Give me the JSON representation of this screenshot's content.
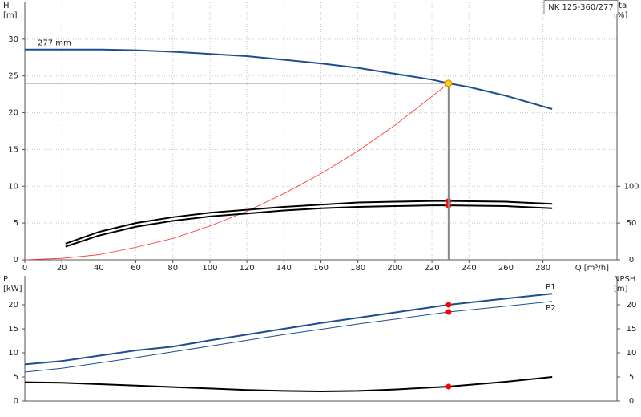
{
  "chart_data": [
    {
      "type": "line",
      "title": "NK 125-360/277",
      "ylabel": [
        "H",
        "[m]"
      ],
      "y2label": [
        "eta",
        "[%]"
      ],
      "xlabel": "Q [m³/h]",
      "xlim": [
        0,
        320
      ],
      "xticks": [
        0,
        20,
        40,
        60,
        80,
        100,
        120,
        140,
        160,
        180,
        200,
        220,
        240,
        260,
        280
      ],
      "ylim": [
        0,
        35
      ],
      "yticks": [
        0,
        5,
        10,
        15,
        20,
        25,
        30
      ],
      "y2lim": [
        0,
        350
      ],
      "y2ticks": [
        0,
        50,
        100
      ],
      "grid": true,
      "operating_point": {
        "x": 229,
        "y": 24,
        "color": "#ffd200"
      },
      "series": [
        {
          "name": "277 mm",
          "color": "#1f4e8c",
          "x": [
            0,
            20,
            40,
            60,
            80,
            100,
            120,
            140,
            160,
            180,
            200,
            220,
            229,
            240,
            260,
            285
          ],
          "values": [
            28.6,
            28.6,
            28.6,
            28.5,
            28.3,
            28.0,
            27.7,
            27.2,
            26.7,
            26.1,
            25.3,
            24.5,
            24.0,
            23.5,
            22.3,
            20.5
          ]
        },
        {
          "color": "#ff2a2a",
          "x": [
            0,
            20,
            40,
            60,
            80,
            100,
            120,
            140,
            160,
            180,
            200,
            220,
            229
          ],
          "values": [
            0,
            0.2,
            0.7,
            1.7,
            2.9,
            4.6,
            6.6,
            9.0,
            11.7,
            14.8,
            18.3,
            22.2,
            24
          ]
        },
        {
          "color": "#000000",
          "axis": "y2",
          "x": [
            22,
            40,
            60,
            80,
            100,
            120,
            140,
            160,
            180,
            200,
            220,
            229,
            260,
            285
          ],
          "values": [
            22,
            38,
            50,
            58,
            64,
            68,
            72,
            75,
            78,
            79,
            80,
            80,
            79,
            76
          ]
        },
        {
          "color": "#000000",
          "axis": "y2",
          "x": [
            22,
            40,
            60,
            80,
            100,
            120,
            140,
            160,
            180,
            200,
            220,
            229,
            260,
            285
          ],
          "values": [
            18,
            33,
            45,
            53,
            59,
            63,
            67,
            70,
            72,
            73,
            74,
            74,
            73,
            70
          ]
        }
      ]
    },
    {
      "type": "line",
      "ylabel": [
        "P",
        "[kW]"
      ],
      "y2label": [
        "NPSH",
        "[m]"
      ],
      "xlim": [
        0,
        320
      ],
      "ylim": [
        0,
        26
      ],
      "yticks": [
        0,
        5,
        10,
        15,
        20
      ],
      "y2lim": [
        0,
        26
      ],
      "y2ticks": [
        0,
        5,
        10,
        15,
        20
      ],
      "series": [
        {
          "name": "P1",
          "color": "#1f4e8c",
          "x": [
            0,
            20,
            40,
            60,
            80,
            100,
            120,
            140,
            160,
            180,
            200,
            229,
            260,
            285
          ],
          "values": [
            7.6,
            8.3,
            9.4,
            10.5,
            11.3,
            12.6,
            13.8,
            15.0,
            16.2,
            17.3,
            18.4,
            20.0,
            21.3,
            22.3
          ]
        },
        {
          "name": "P2",
          "color": "#1f4e8c",
          "x": [
            0,
            20,
            40,
            60,
            80,
            100,
            120,
            140,
            160,
            180,
            200,
            229,
            260,
            285
          ],
          "values": [
            6.0,
            6.8,
            7.9,
            9.0,
            10.2,
            11.4,
            12.6,
            13.8,
            14.9,
            16.0,
            17.0,
            18.5,
            19.7,
            20.7
          ]
        },
        {
          "color": "#000000",
          "axis": "y2",
          "x": [
            0,
            20,
            40,
            60,
            80,
            100,
            120,
            140,
            160,
            180,
            200,
            229,
            260,
            285
          ],
          "values": [
            3.9,
            3.8,
            3.5,
            3.2,
            2.9,
            2.6,
            2.3,
            2.1,
            2.0,
            2.1,
            2.4,
            3.0,
            4.0,
            5.0
          ]
        }
      ]
    }
  ]
}
